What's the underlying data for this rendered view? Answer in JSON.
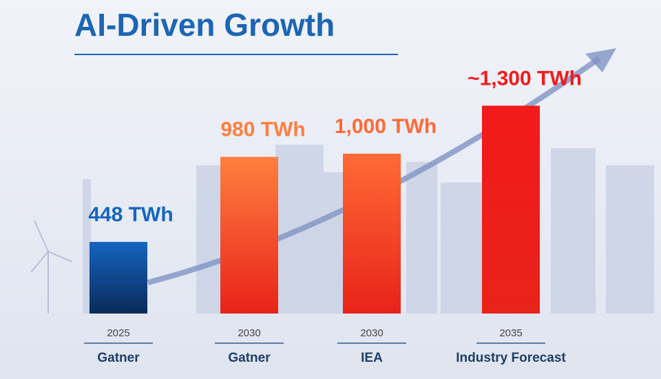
{
  "chart_data": {
    "type": "bar",
    "title": "AI-Driven Growth",
    "categories": [
      "2025",
      "2030",
      "2030",
      "2035"
    ],
    "sources": [
      "Gatner",
      "Gatner",
      "IEA",
      "Industry Forecast"
    ],
    "values": [
      448,
      980,
      1000,
      1300
    ],
    "value_labels": [
      "448 TWh",
      "980 TWh",
      "1,000 TWh",
      "~1,300 TWh"
    ],
    "colors": [
      "#1565c0",
      "#ff7f3f",
      "#ff6a35",
      "#f21a1a"
    ]
  }
}
